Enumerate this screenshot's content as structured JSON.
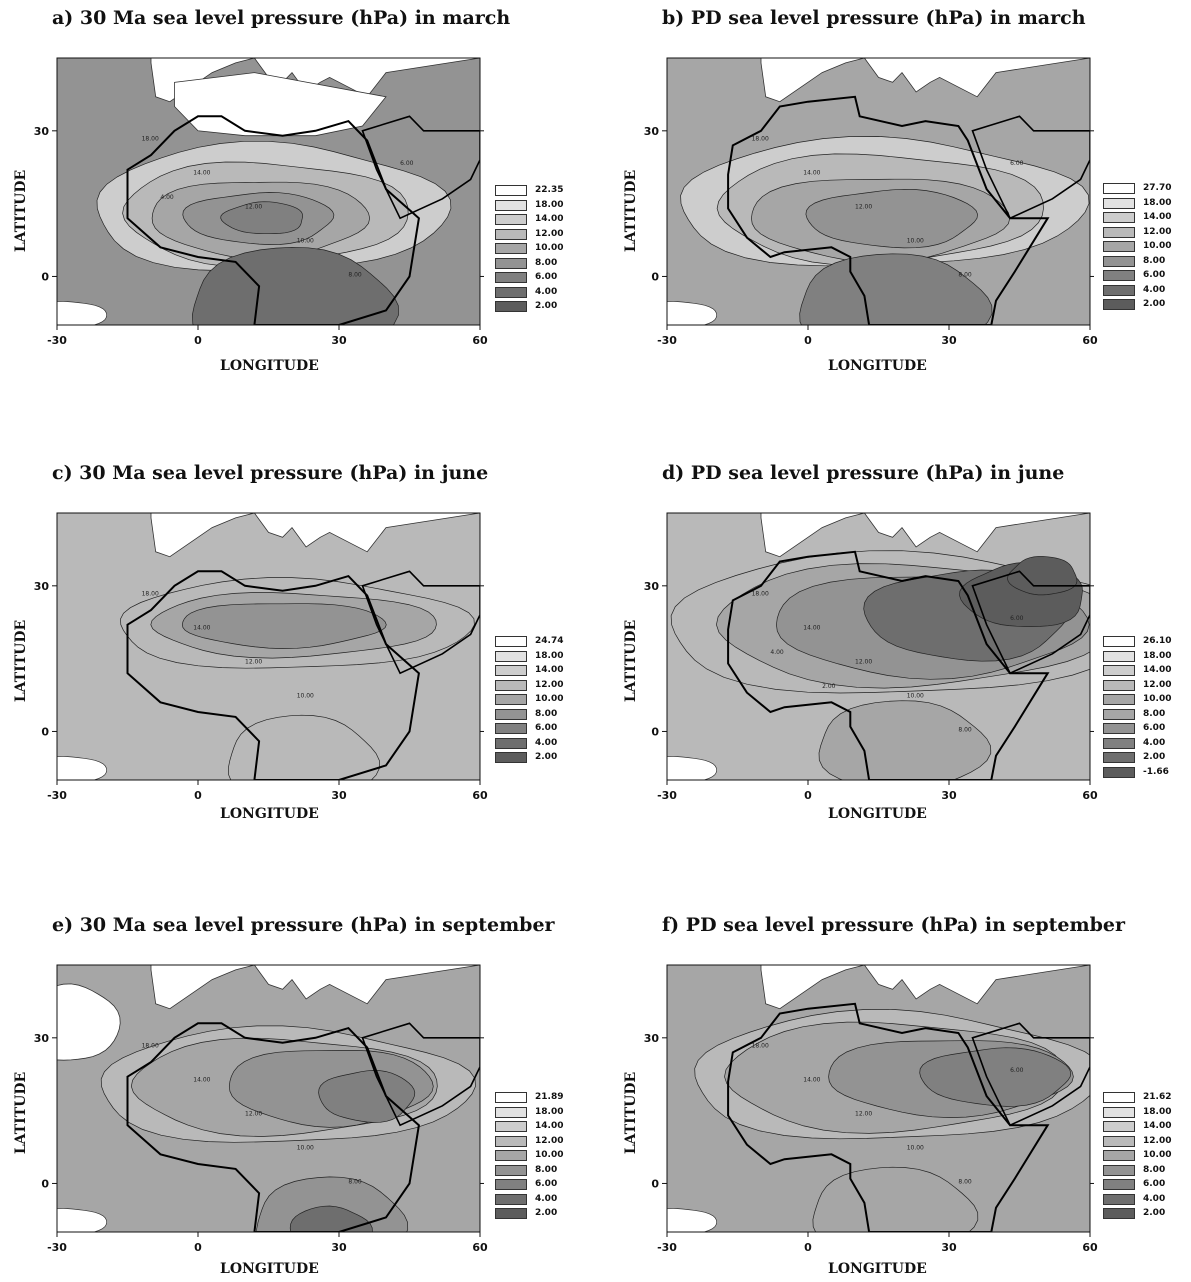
{
  "axes": {
    "xlabel": "LONGITUDE",
    "ylabel": "LATITUDE",
    "xticks": [
      "-30",
      "0",
      "30",
      "60"
    ],
    "yticks": [
      "0",
      "30"
    ],
    "xlim": [
      -30,
      60
    ],
    "ylim": [
      -10,
      45
    ]
  },
  "shade_colors": [
    "#5c5c5c",
    "#6e6e6e",
    "#808080",
    "#939393",
    "#a6a6a6",
    "#b9b9b9",
    "#cdcdcd",
    "#e2e2e2",
    "#ffffff"
  ],
  "panels": [
    {
      "title": "a) 30 Ma sea level pressure (hPa) in march",
      "legend": [
        "22.35",
        "18.00",
        "14.00",
        "12.00",
        "10.00",
        "8.00",
        "6.00",
        "4.00",
        "2.00"
      ],
      "contour_labels": [
        "18.00",
        "14.00",
        "12.00",
        "10.00",
        "8.00",
        "6.00",
        "4.00"
      ]
    },
    {
      "title": "b) PD sea level pressure (hPa) in march",
      "legend": [
        "27.70",
        "18.00",
        "14.00",
        "12.00",
        "10.00",
        "8.00",
        "6.00",
        "4.00",
        "2.00"
      ],
      "contour_labels": [
        "18.00",
        "14.00",
        "12.00",
        "10.00",
        "8.00",
        "6.00"
      ]
    },
    {
      "title": "c) 30 Ma sea level pressure (hPa) in june",
      "legend": [
        "24.74",
        "18.00",
        "14.00",
        "12.00",
        "10.00",
        "8.00",
        "6.00",
        "4.00",
        "2.00"
      ],
      "contour_labels": [
        "18.00",
        "14.00",
        "12.00",
        "10.00"
      ]
    },
    {
      "title": "d) PD sea level pressure (hPa) in june",
      "legend": [
        "26.10",
        "18.00",
        "14.00",
        "12.00",
        "10.00",
        "8.00",
        "6.00",
        "4.00",
        "2.00",
        "-1.66"
      ],
      "contour_labels": [
        "18.00",
        "14.00",
        "12.00",
        "10.00",
        "8.00",
        "6.00",
        "4.00",
        "2.00"
      ]
    },
    {
      "title": "e) 30 Ma sea level pressure (hPa) in september",
      "legend": [
        "21.89",
        "18.00",
        "14.00",
        "12.00",
        "10.00",
        "8.00",
        "6.00",
        "4.00",
        "2.00"
      ],
      "contour_labels": [
        "18.00",
        "14.00",
        "12.00",
        "10.00",
        "8.00"
      ]
    },
    {
      "title": "f) PD sea level pressure (hPa) in september",
      "legend": [
        "21.62",
        "18.00",
        "14.00",
        "12.00",
        "10.00",
        "8.00",
        "6.00",
        "4.00",
        "2.00"
      ],
      "contour_labels": [
        "18.00",
        "14.00",
        "12.00",
        "10.00",
        "8.00",
        "6.00"
      ]
    }
  ]
}
